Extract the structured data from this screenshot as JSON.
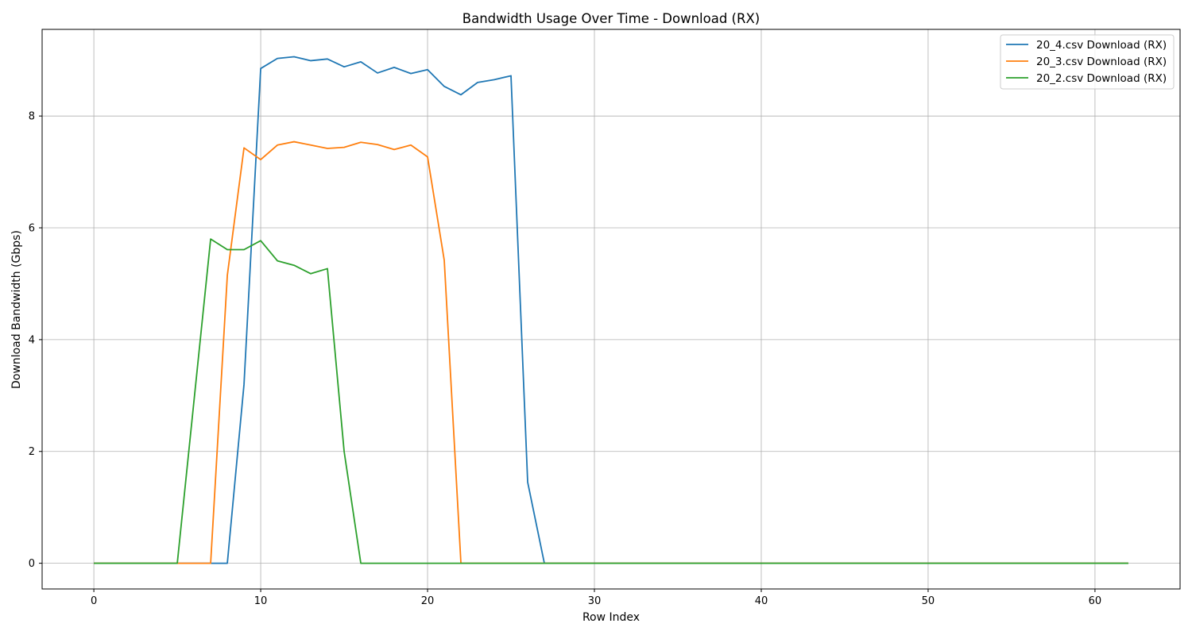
{
  "chart_data": {
    "type": "line",
    "title": "Bandwidth Usage Over Time - Download (RX)",
    "xlabel": "Row Index",
    "ylabel": "Download Bandwidth (Gbps)",
    "xlim": [
      -3.1,
      65.1
    ],
    "ylim": [
      -0.46,
      9.55
    ],
    "xticks": [
      0,
      10,
      20,
      30,
      40,
      50,
      60
    ],
    "yticks": [
      0,
      2,
      4,
      6,
      8
    ],
    "grid": true,
    "legend_position": "top-right",
    "series": [
      {
        "name": "20_4.csv Download (RX)",
        "color": "#1f77b4",
        "x": [
          0,
          1,
          2,
          3,
          4,
          5,
          6,
          7,
          8,
          9,
          10,
          11,
          12,
          13,
          14,
          15,
          16,
          17,
          18,
          19,
          20,
          21,
          22,
          23,
          24,
          25,
          26,
          27,
          28,
          29,
          30,
          31,
          32,
          33,
          34,
          35,
          36,
          37,
          38,
          39,
          40,
          41,
          42,
          43,
          44,
          45,
          46,
          47,
          48,
          49,
          50,
          51,
          52,
          53,
          54,
          55,
          56,
          57,
          58,
          59,
          60,
          61,
          62
        ],
        "values": [
          0,
          0,
          0,
          0,
          0,
          0,
          0,
          0,
          0,
          3.2,
          8.85,
          9.03,
          9.06,
          8.99,
          9.02,
          8.88,
          8.97,
          8.77,
          8.87,
          8.76,
          8.83,
          8.53,
          8.38,
          8.6,
          8.65,
          8.72,
          1.45,
          0,
          0,
          0,
          0,
          0,
          0,
          0,
          0,
          0,
          0,
          0,
          0,
          0,
          0,
          0,
          0,
          0,
          0,
          0,
          0,
          0,
          0,
          0,
          0,
          0,
          0,
          0,
          0,
          0,
          0,
          0,
          0,
          0,
          0,
          0,
          0
        ]
      },
      {
        "name": "20_3.csv Download (RX)",
        "color": "#ff7f0e",
        "x": [
          0,
          1,
          2,
          3,
          4,
          5,
          6,
          7,
          8,
          9,
          10,
          11,
          12,
          13,
          14,
          15,
          16,
          17,
          18,
          19,
          20,
          21,
          22,
          23,
          24,
          25,
          26,
          27,
          28,
          29,
          30,
          31,
          32,
          33,
          34,
          35,
          36,
          37,
          38,
          39,
          40,
          41,
          42,
          43,
          44,
          45,
          46,
          47,
          48,
          49,
          50,
          51,
          52,
          53,
          54,
          55,
          56,
          57,
          58,
          59,
          60,
          61,
          62
        ],
        "values": [
          0,
          0,
          0,
          0,
          0,
          0,
          0,
          0,
          5.15,
          7.43,
          7.22,
          7.48,
          7.54,
          7.48,
          7.42,
          7.44,
          7.53,
          7.49,
          7.4,
          7.48,
          7.27,
          5.42,
          0,
          0,
          0,
          0,
          0,
          0,
          0,
          0,
          0,
          0,
          0,
          0,
          0,
          0,
          0,
          0,
          0,
          0,
          0,
          0,
          0,
          0,
          0,
          0,
          0,
          0,
          0,
          0,
          0,
          0,
          0,
          0,
          0,
          0,
          0,
          0,
          0,
          0,
          0,
          0,
          0
        ]
      },
      {
        "name": "20_2.csv Download (RX)",
        "color": "#2ca02c",
        "x": [
          0,
          1,
          2,
          3,
          4,
          5,
          6,
          7,
          8,
          9,
          10,
          11,
          12,
          13,
          14,
          15,
          16,
          17,
          18,
          19,
          20,
          21,
          22,
          23,
          24,
          25,
          26,
          27,
          28,
          29,
          30,
          31,
          32,
          33,
          34,
          35,
          36,
          37,
          38,
          39,
          40,
          41,
          42,
          43,
          44,
          45,
          46,
          47,
          48,
          49,
          50,
          51,
          52,
          53,
          54,
          55,
          56,
          57,
          58,
          59,
          60,
          61,
          62
        ],
        "values": [
          0,
          0,
          0,
          0,
          0,
          0,
          2.9,
          5.8,
          5.61,
          5.61,
          5.77,
          5.41,
          5.33,
          5.18,
          5.27,
          2.0,
          0,
          0,
          0,
          0,
          0,
          0,
          0,
          0,
          0,
          0,
          0,
          0,
          0,
          0,
          0,
          0,
          0,
          0,
          0,
          0,
          0,
          0,
          0,
          0,
          0,
          0,
          0,
          0,
          0,
          0,
          0,
          0,
          0,
          0,
          0,
          0,
          0,
          0,
          0,
          0,
          0,
          0,
          0,
          0,
          0,
          0,
          0
        ]
      }
    ]
  }
}
